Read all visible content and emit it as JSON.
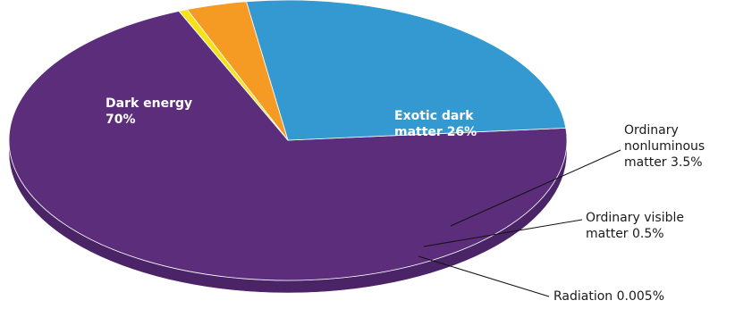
{
  "chart_data": {
    "type": "pie",
    "title": "",
    "slices": [
      {
        "label_lines": [
          "Dark energy",
          "70%"
        ],
        "value": 70,
        "color": "#5b2d7a",
        "side_color": "#4a2466"
      },
      {
        "label_lines": [
          "Exotic dark",
          "matter 26%"
        ],
        "value": 26,
        "color": "#3399d0",
        "side_color": "#2a82b3"
      },
      {
        "label_lines": [
          "Ordinary",
          "nonluminous",
          "matter 3.5%"
        ],
        "value": 3.5,
        "color": "#f59a23",
        "side_color": "#dd8618"
      },
      {
        "label_lines": [
          "Ordinary visible",
          "matter 0.5%"
        ],
        "value": 0.5,
        "color": "#f7e21a",
        "side_color": "#ddc90f"
      },
      {
        "label_lines": [
          "Radiation 0.005%"
        ],
        "value": 0.005,
        "color": "#fffde0",
        "side_color": "#eeeccc"
      }
    ]
  }
}
